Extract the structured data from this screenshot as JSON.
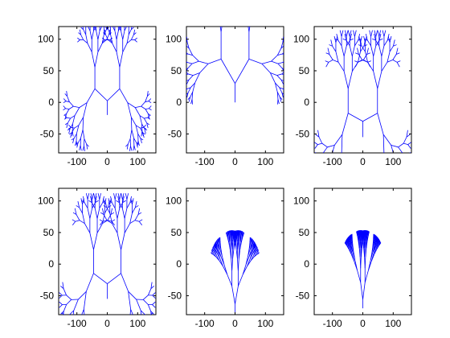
{
  "chart_data": [
    {
      "type": "line",
      "variant": "fractal-tree",
      "title": "",
      "xlabel": "",
      "ylabel": "",
      "xlim": [
        -160,
        160
      ],
      "ylim": [
        -80,
        120
      ],
      "xticks": [
        -100,
        0,
        100
      ],
      "yticks": [
        -50,
        0,
        50,
        100
      ],
      "tree": {
        "base": [
          0,
          -20
        ],
        "stem_angle": 90,
        "left_angle": 155,
        "right_angle": 25,
        "first_len": 45,
        "ratio": 0.76,
        "depth": 7
      },
      "color": "#0000ff"
    },
    {
      "type": "line",
      "variant": "fractal-tree",
      "title": "",
      "xlabel": "",
      "ylabel": "",
      "xlim": [
        -160,
        160
      ],
      "ylim": [
        -80,
        120
      ],
      "xticks": [
        -100,
        0,
        100
      ],
      "yticks": [
        -50,
        0,
        50,
        100
      ],
      "tree": {
        "base": [
          0,
          0
        ],
        "stem_angle": 90,
        "left_angle": 140,
        "right_angle": 40,
        "first_len": 60,
        "ratio": 0.72,
        "depth": 7
      },
      "color": "#0000ff"
    },
    {
      "type": "line",
      "variant": "fractal-tree",
      "title": "",
      "xlabel": "",
      "ylabel": "",
      "xlim": [
        -160,
        160
      ],
      "ylim": [
        -80,
        120
      ],
      "xticks": [
        -100,
        0,
        100
      ],
      "yticks": [
        -50,
        0,
        50,
        100
      ],
      "tree": {
        "base": [
          0,
          -55
        ],
        "stem_angle": 90,
        "left_angle": 165,
        "right_angle": 15,
        "first_len": 50,
        "ratio": 0.78,
        "depth": 7
      },
      "color": "#0000ff"
    },
    {
      "type": "line",
      "variant": "fractal-tree",
      "title": "",
      "xlabel": "",
      "ylabel": "",
      "xlim": [
        -160,
        160
      ],
      "ylim": [
        -80,
        120
      ],
      "xticks": [
        -100,
        0,
        100
      ],
      "yticks": [
        -50,
        0,
        50,
        100
      ],
      "tree": {
        "base": [
          0,
          -55
        ],
        "stem_angle": 90,
        "left_angle": 160,
        "right_angle": 20,
        "first_len": 48,
        "ratio": 0.78,
        "depth": 7
      },
      "color": "#0000ff"
    },
    {
      "type": "line",
      "variant": "fractal-tree",
      "title": "",
      "xlabel": "",
      "ylabel": "",
      "xlim": [
        -160,
        160
      ],
      "ylim": [
        -80,
        120
      ],
      "xticks": [
        -100,
        0,
        100
      ],
      "yticks": [
        -50,
        0,
        50,
        100
      ],
      "tree": {
        "base": [
          0,
          -78
        ],
        "stem_angle": 90,
        "left_angle": 110,
        "right_angle": 70,
        "first_len": 30,
        "ratio": 0.8,
        "depth": 7
      },
      "color": "#0000ff"
    },
    {
      "type": "line",
      "variant": "fractal-tree",
      "title": "",
      "xlabel": "",
      "ylabel": "",
      "xlim": [
        -160,
        160
      ],
      "ylim": [
        -80,
        120
      ],
      "xticks": [
        -100,
        0,
        100
      ],
      "yticks": [
        -50,
        0,
        50,
        100
      ],
      "tree": {
        "base": [
          0,
          -70
        ],
        "stem_angle": 90,
        "left_angle": 105,
        "right_angle": 75,
        "first_len": 28,
        "ratio": 0.8,
        "depth": 7
      },
      "color": "#0000ff"
    }
  ]
}
